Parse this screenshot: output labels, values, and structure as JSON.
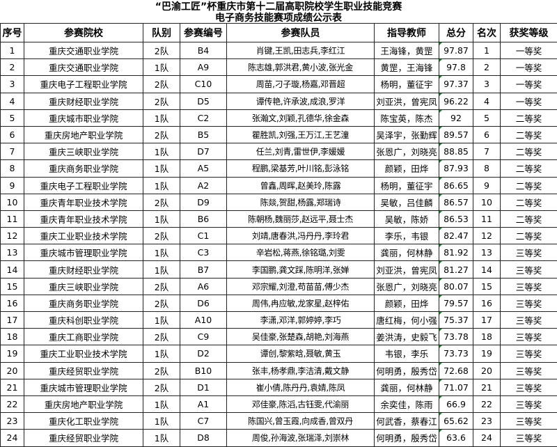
{
  "title_line1": "“巴渝工匠”杯重庆市第十二届高职院校学生职业技能竞赛",
  "title_line2": "电子商务技能赛项成绩公示表",
  "columns": [
    "序号",
    "参赛院校",
    "队别",
    "参赛编号",
    "参赛队员",
    "指导教师",
    "总分",
    "名次",
    "获奖等级"
  ],
  "rows": [
    [
      "1",
      "重庆交通职业学院",
      "2队",
      "B4",
      "肖键,王凯,田志兵,李红江",
      "王海锋，黄罡",
      "97.87",
      "1",
      "一等奖"
    ],
    [
      "2",
      "重庆交通职业学院",
      "1队",
      "A9",
      "陈志雄,郭洪君,黄小波,张光金",
      "黄罡，王海锋",
      "97.8",
      "2",
      "一等奖"
    ],
    [
      "3",
      "重庆电子工程职业学院",
      "2队",
      "C10",
      "周苗,刁子璇,杨嘉,邓晋超",
      "杨明，董征宇",
      "97.37",
      "3",
      "一等奖"
    ],
    [
      "4",
      "重庆财经职业学院",
      "2队",
      "D5",
      "谭传艳,许承波,成浪,罗洋",
      "刘亚洪，曾宪凤",
      "96.22",
      "4",
      "一等奖"
    ],
    [
      "5",
      "重庆城市职业学院",
      "1队",
      "C2",
      "张瀚文,刘颖,孔德华,徐金森",
      "陈宝英，陈杰",
      "92",
      "5",
      "二等奖"
    ],
    [
      "6",
      "重庆房地产职业学院",
      "2队",
      "B5",
      "瞿胜凯,刘强,王万江,王艺潼",
      "吴泽宇，张勤辉",
      "89.57",
      "6",
      "二等奖"
    ],
    [
      "7",
      "重庆三峡职业学院",
      "1队",
      "D7",
      "任兰,刘青,雷世伊,李媛媛",
      "张恩广，刘晓亮",
      "88.85",
      "7",
      "二等奖"
    ],
    [
      "8",
      "重庆商务职业学院",
      "1队",
      "A5",
      "程鹏,梁基芳,叶川铭,彭泳铭",
      "颜颖，田烨",
      "87.93",
      "8",
      "二等奖"
    ],
    [
      "9",
      "重庆电子工程职业学院",
      "1队",
      "A2",
      "曾鑫,周晖,赵美玲,陈露",
      "杨明，董征宇",
      "86.65",
      "9",
      "二等奖"
    ],
    [
      "10",
      "重庆青年职业技术学院",
      "2队",
      "D9",
      "陈燚,贺甜,杨露,郑瑞诗",
      "吴敏，吕佳麟",
      "86.57",
      "10",
      "二等奖"
    ],
    [
      "11",
      "重庆青年职业技术学院",
      "1队",
      "B6",
      "陈朝杨,魏丽莎,赵远平,聂士杰",
      "吴敏，陈娇",
      "86.53",
      "11",
      "二等奖"
    ],
    [
      "12",
      "重庆工业职业技术学院",
      "2队",
      "C1",
      "刘靖,唐春洪,冯丹丹,李玲君",
      "李乐，韦银",
      "82.47",
      "12",
      "二等奖"
    ],
    [
      "13",
      "重庆城市管理职业学院",
      "1队",
      "C3",
      "辛岩松,蒋燕,徐铭璐,刘雯",
      "龚丽，何林静",
      "81.92",
      "13",
      "三等奖"
    ],
    [
      "14",
      "重庆财经职业学院",
      "1队",
      "B7",
      "李国鹏,龚文踩,陈明洋,张婵",
      "刘亚洪，曾宪凤",
      "81.27",
      "14",
      "三等奖"
    ],
    [
      "15",
      "重庆三峡职业学院",
      "2队",
      "A6",
      "邓宗耀,刘澄,苟苗苗,傅少杰",
      "张恩广，刘晓亮",
      "80.07",
      "15",
      "三等奖"
    ],
    [
      "16",
      "重庆商务职业学院",
      "2队",
      "D6",
      "周伟,冉应敏,龙家星,赵梓佑",
      "颜颖，田烨",
      "79.57",
      "16",
      "三等奖"
    ],
    [
      "17",
      "重庆科创职业学院",
      "1队",
      "A10",
      "李潇,邓洋,郭婷婷,李巧",
      "唐红梅，何小强",
      "75.37",
      "17",
      "三等奖"
    ],
    [
      "18",
      "重庆工商职业学院",
      "2队",
      "C9",
      "吴佳豪,张楚森,胡艳,刘海燕",
      "姜洪涛，史毅飞",
      "73.78",
      "18",
      "三等奖"
    ],
    [
      "19",
      "重庆工业职业技术学院",
      "1队",
      "D2",
      "谭创,黎紫晗,聂敏,黄玉",
      "韦银，李乐",
      "73.73",
      "19",
      "三等奖"
    ],
    [
      "20",
      "重庆经贸职业学院",
      "2队",
      "B10",
      "张丰,杨孝鼎,李洁清,戴文静",
      "何明勇，殷秀岱",
      "72.68",
      "20",
      "三等奖"
    ],
    [
      "21",
      "重庆城市管理职业学院",
      "2队",
      "D1",
      "崔小倩,陈丹丹,袁婧,陈凤",
      "龚丽，何林静",
      "71.07",
      "21",
      "三等奖"
    ],
    [
      "22",
      "重庆房地产职业学院",
      "1队",
      "A1",
      "邓佳豪,陈滔,古钰雯,代渝丽",
      "余奕佳，陈雨",
      "66.9",
      "22",
      "三等奖"
    ],
    [
      "23",
      "重庆化工职业学院",
      "1队",
      "C7",
      "陈国兴,曾玉霞,向成香,曾双丹",
      "何武香，蔡春江",
      "65.62",
      "23",
      "三等奖"
    ],
    [
      "24",
      "重庆经贸职业学院",
      "1队",
      "D8",
      "周俊,孙海波,张瑞泽,刘崇林",
      "何明勇，殷秀岱",
      "63.6",
      "24",
      "三等奖"
    ]
  ],
  "colors": {
    "text_marker": "#1a8a2a",
    "border": "#222222"
  }
}
